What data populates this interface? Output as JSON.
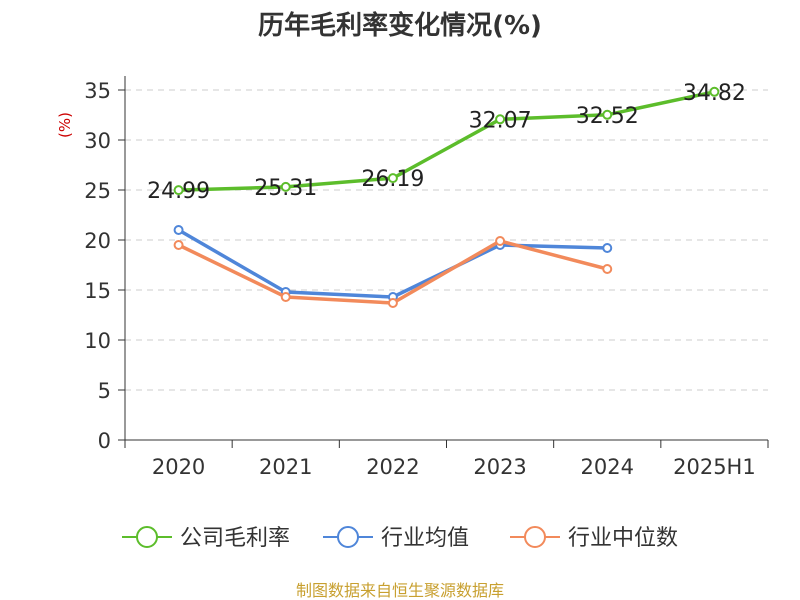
{
  "chart_data": {
    "type": "line",
    "title": "历年毛利率变化情况(%)",
    "ylabel": "(%)",
    "categories": [
      "2020",
      "2021",
      "2022",
      "2023",
      "2024",
      "2025H1"
    ],
    "ylim": [
      0,
      35
    ],
    "yticks": [
      0,
      5,
      10,
      15,
      20,
      25,
      30,
      35
    ],
    "grid": true,
    "legend_position": "bottom",
    "series": [
      {
        "name": "公司毛利率",
        "color": "#5cbd2b",
        "show_labels": true,
        "values": [
          24.99,
          25.31,
          26.19,
          32.07,
          32.52,
          34.82
        ]
      },
      {
        "name": "行业均值",
        "color": "#4f86d9",
        "show_labels": false,
        "values": [
          21.0,
          14.8,
          14.3,
          19.5,
          19.2,
          null
        ]
      },
      {
        "name": "行业中位数",
        "color": "#f28a5b",
        "show_labels": false,
        "values": [
          19.5,
          14.3,
          13.7,
          19.9,
          17.1,
          null
        ]
      }
    ],
    "footer": "制图数据来自恒生聚源数据库"
  }
}
